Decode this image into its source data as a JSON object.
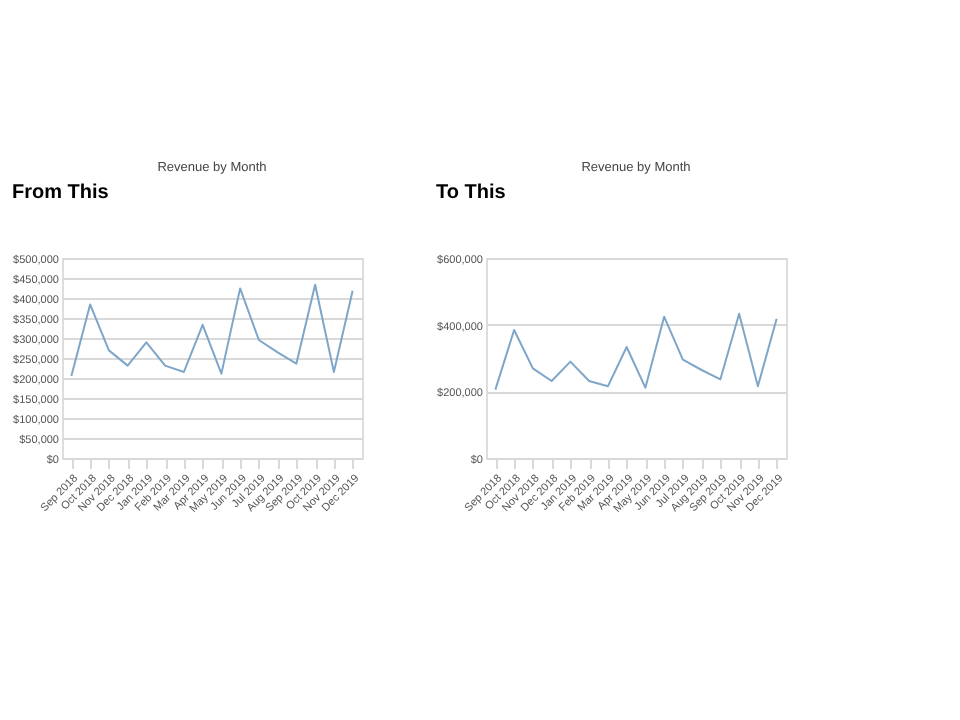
{
  "chart_data": [
    {
      "type": "line",
      "title": "Revenue by Month",
      "annotations": [
        "From This"
      ],
      "categories": [
        "Sep 2018",
        "Oct 2018",
        "Nov 2018",
        "Dec 2018",
        "Jan 2019",
        "Feb 2019",
        "Mar 2019",
        "Apr 2019",
        "May 2019",
        "Jun 2019",
        "Jul 2019",
        "Aug 2019",
        "Sep 2019",
        "Oct 2019",
        "Nov 2019",
        "Dec 2019"
      ],
      "values": [
        205000,
        384000,
        269000,
        231000,
        289000,
        231000,
        215000,
        333000,
        211000,
        424000,
        295000,
        264000,
        236000,
        433000,
        215000,
        418000
      ],
      "color": "#7ea6c8",
      "ylim": [
        0,
        500000
      ],
      "yticks": [
        {
          "value": 0,
          "label": "$0"
        },
        {
          "value": 50000,
          "label": "$50,000"
        },
        {
          "value": 100000,
          "label": "$100,000"
        },
        {
          "value": 150000,
          "label": "$150,000"
        },
        {
          "value": 200000,
          "label": "$200,000"
        },
        {
          "value": 250000,
          "label": "$250,000"
        },
        {
          "value": 300000,
          "label": "$300,000"
        },
        {
          "value": 350000,
          "label": "$350,000"
        },
        {
          "value": 400000,
          "label": "$400,000"
        },
        {
          "value": 450000,
          "label": "$450,000"
        },
        {
          "value": 500000,
          "label": "$500,000"
        }
      ],
      "grid": "y",
      "marker": "none"
    },
    {
      "type": "line",
      "title": "Revenue by Month",
      "annotations": [
        "To This"
      ],
      "categories": [
        "Sep 2018",
        "Oct 2018",
        "Nov 2018",
        "Dec 2018",
        "Jan 2019",
        "Feb 2019",
        "Mar 2019",
        "Apr 2019",
        "May 2019",
        "Jun 2019",
        "Jul 2019",
        "Aug 2019",
        "Sep 2019",
        "Oct 2019",
        "Nov 2019",
        "Dec 2019"
      ],
      "values": [
        205000,
        384000,
        269000,
        231000,
        289000,
        231000,
        215000,
        333000,
        211000,
        424000,
        295000,
        264000,
        236000,
        433000,
        215000,
        418000
      ],
      "color": "#7ea6c8",
      "ylim": [
        0,
        600000
      ],
      "yticks": [
        {
          "value": 0,
          "label": "$0"
        },
        {
          "value": 200000,
          "label": "$200,000"
        },
        {
          "value": 400000,
          "label": "$400,000"
        },
        {
          "value": 600000,
          "label": "$600,000"
        }
      ],
      "grid": "y",
      "marker": "none"
    }
  ]
}
